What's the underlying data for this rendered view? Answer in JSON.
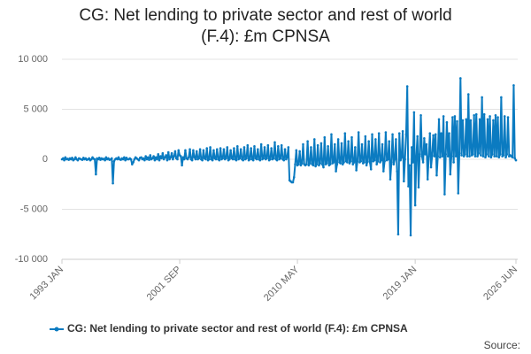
{
  "chart_data": {
    "type": "line",
    "title": "CG: Net lending to private sector and rest of world (F.4): £m CPNSA",
    "source": "Source:",
    "categories": [
      "1993 JAN",
      null,
      null,
      null,
      null,
      null,
      null,
      null,
      null,
      null,
      null,
      null,
      null,
      null,
      null,
      null,
      null,
      null,
      null,
      null,
      null,
      null,
      null,
      null,
      null,
      null,
      null,
      null,
      null,
      null,
      null,
      null,
      null,
      null,
      null,
      null,
      null,
      null,
      null,
      null,
      null,
      null,
      null,
      null,
      null,
      null,
      null,
      null,
      null,
      null,
      null,
      null,
      null,
      null,
      null,
      null,
      null,
      null,
      null,
      null,
      null,
      null,
      null,
      null,
      null,
      null,
      null,
      null,
      null,
      null,
      null,
      null,
      null,
      null,
      null,
      null,
      null,
      null,
      null,
      null,
      null,
      null,
      null,
      null,
      null,
      null,
      null,
      null,
      null,
      null,
      null,
      null,
      null,
      null,
      null,
      null,
      null,
      null,
      null,
      null,
      null,
      null,
      null,
      null,
      "2001 SEP",
      null,
      null,
      null,
      null,
      null,
      null,
      null,
      null,
      null,
      null,
      null,
      null,
      null,
      null,
      null,
      null,
      null,
      null,
      null,
      null,
      null,
      null,
      null,
      null,
      null,
      null,
      null,
      null,
      null,
      null,
      null,
      null,
      null,
      null,
      null,
      null,
      null,
      null,
      null,
      null,
      null,
      null,
      null,
      null,
      null,
      null,
      null,
      null,
      null,
      null,
      null,
      null,
      null,
      null,
      null,
      null,
      null,
      null,
      null,
      null,
      null,
      null,
      null,
      null,
      null,
      null,
      null,
      null,
      null,
      null,
      null,
      null,
      null,
      null,
      null,
      null,
      null,
      null,
      null,
      null,
      null,
      null,
      null,
      null,
      null,
      null,
      null,
      null,
      null,
      null,
      null,
      null,
      null,
      null,
      null,
      null,
      null,
      null,
      null,
      null,
      null,
      null,
      null,
      "2010 MAY",
      null,
      null,
      null,
      null,
      null,
      null,
      null,
      null,
      null,
      null,
      null,
      null,
      null,
      null,
      null,
      null,
      null,
      null,
      null,
      null,
      null,
      null,
      null,
      null,
      null,
      null,
      null,
      null,
      null,
      null,
      null,
      null,
      null,
      null,
      null,
      null,
      null,
      null,
      null,
      null,
      null,
      null,
      null,
      null,
      null,
      null,
      null,
      null,
      null,
      null,
      null,
      null,
      null,
      null,
      null,
      null,
      null,
      null,
      null,
      null,
      null,
      null,
      null,
      null,
      null,
      null,
      null,
      null,
      null,
      null,
      null,
      null,
      null,
      null,
      null,
      null,
      null,
      null,
      null,
      null,
      null,
      null,
      null,
      null,
      null,
      null,
      null,
      null,
      null,
      null,
      null,
      null,
      null,
      null,
      null,
      null,
      null,
      null,
      null,
      null,
      null,
      null,
      null,
      "2019 JAN",
      null,
      null,
      null,
      null,
      null,
      null,
      null,
      null,
      null,
      null,
      null,
      null,
      null,
      null,
      null,
      null,
      null,
      null,
      null,
      null,
      null,
      null,
      null,
      null,
      null,
      null,
      null,
      null,
      null,
      null,
      null,
      null,
      null,
      null,
      null,
      null,
      null,
      null,
      null,
      null,
      null,
      null,
      null,
      null,
      null,
      null,
      null,
      null,
      null,
      null,
      null,
      null,
      null,
      null,
      null,
      null,
      null,
      null,
      null,
      null,
      null,
      null,
      null,
      null,
      null,
      null,
      null,
      null,
      null,
      null,
      null,
      null,
      null,
      null,
      null,
      null,
      null,
      null,
      null,
      null,
      null,
      null,
      null,
      null,
      null,
      null,
      null,
      null,
      "2026 JUN"
    ],
    "series": [
      {
        "name": "CG: Net lending to private sector and rest of world (F.4): £m CPNSA",
        "color": "#0b7bc1",
        "values": [
          0,
          100,
          -100,
          200,
          0,
          50,
          -50,
          100,
          0,
          150,
          -100,
          0,
          200,
          0,
          -100,
          100,
          50,
          0,
          -50,
          150,
          0,
          100,
          -50,
          0,
          100,
          -100,
          0,
          200,
          50,
          0,
          -1500,
          100,
          0,
          150,
          -50,
          100,
          0,
          50,
          -100,
          200,
          0,
          100,
          -50,
          0,
          100,
          -2400,
          -200,
          0,
          100,
          0,
          200,
          0,
          -50,
          100,
          0,
          200,
          -100,
          150,
          0,
          0,
          100,
          0,
          -500,
          -300,
          0,
          200,
          100,
          0,
          -100,
          150,
          200,
          0,
          100,
          -100,
          300,
          0,
          200,
          -50,
          400,
          0,
          100,
          300,
          -100,
          200,
          0,
          500,
          -100,
          300,
          100,
          600,
          0,
          200,
          400,
          -100,
          700,
          0,
          200,
          600,
          0,
          300,
          800,
          100,
          0,
          900,
          400,
          300,
          -600,
          200,
          0,
          900,
          100,
          0,
          200,
          1000,
          0,
          -100,
          900,
          200,
          0,
          800,
          0,
          100,
          1000,
          0,
          -100,
          900,
          100,
          0,
          1100,
          -100,
          0,
          1200,
          0,
          -100,
          900,
          100,
          0,
          1000,
          0,
          -100,
          1100,
          0,
          100,
          1000,
          0,
          100,
          1200,
          -100,
          0,
          900,
          100,
          0,
          1100,
          0,
          -100,
          1300,
          0,
          100,
          1000,
          0,
          -100,
          1200,
          0,
          100,
          1400,
          -100,
          0,
          1100,
          0,
          -100,
          1300,
          100,
          0,
          1000,
          0,
          -100,
          1500,
          0,
          100,
          1200,
          0,
          100,
          1400,
          -100,
          0,
          1100,
          0,
          100,
          1700,
          0,
          -100,
          1300,
          0,
          100,
          1400,
          0,
          -100,
          1000,
          0,
          200,
          1200,
          -2100,
          -2200,
          -2300,
          -2300,
          -1800,
          -500,
          900,
          -600,
          -500,
          800,
          -600,
          -400,
          1500,
          -500,
          -600,
          -500,
          1800,
          -600,
          -400,
          1200,
          -500,
          -600,
          2000,
          -700,
          -500,
          1400,
          -600,
          -400,
          1600,
          -500,
          -800,
          2200,
          -500,
          -400,
          1300,
          -600,
          -500,
          2500,
          -400,
          -300,
          1500,
          -1200,
          -500,
          2000,
          -300,
          -400,
          1600,
          -500,
          -300,
          2600,
          -200,
          -300,
          1800,
          -400,
          -200,
          2200,
          -500,
          -300,
          1200,
          -1100,
          -200,
          2700,
          -300,
          -200,
          1500,
          -400,
          -300,
          2300,
          -600,
          -200,
          1800,
          -300,
          -1000,
          2500,
          -200,
          -100,
          2000,
          -500,
          -200,
          2600,
          -300,
          -100,
          1500,
          -1200,
          -200,
          2700,
          -100,
          0,
          1800,
          -2000,
          -300,
          2500,
          -500,
          0,
          2000,
          -1200,
          -7500,
          2600,
          -100,
          200,
          2800,
          -2200,
          0,
          2500,
          7300,
          -2700,
          -600,
          -7600,
          1200,
          -300,
          4700,
          -4600,
          300,
          2300,
          -2800,
          500,
          4400,
          300,
          -300,
          2100,
          500,
          1500,
          -2000,
          300,
          2600,
          -800,
          400,
          2400,
          300,
          2500,
          -1600,
          300,
          4000,
          200,
          2600,
          300,
          4300,
          -3500,
          500,
          3700,
          300,
          2600,
          -1500,
          300,
          4200,
          -300,
          4300,
          300,
          3800,
          -3400,
          600,
          8100,
          400,
          3900,
          300,
          500,
          4000,
          300,
          6500,
          300,
          3900,
          400,
          500,
          4400,
          300,
          4500,
          300,
          600,
          4000,
          400,
          6200,
          300,
          4500,
          200,
          500,
          4000,
          300,
          4300,
          200,
          500,
          3900,
          300,
          4400,
          300,
          4200,
          200,
          500,
          6200,
          300,
          400,
          4300,
          200,
          500,
          4200,
          300,
          400,
          300,
          200,
          7400,
          100,
          -100
        ]
      }
    ],
    "ylim": [
      -10000,
      10000
    ],
    "yticks": [
      {
        "value": 10000,
        "label": "10 000"
      },
      {
        "value": 5000,
        "label": "5 000"
      },
      0,
      {
        "value": -5000,
        "label": "-5 000"
      },
      {
        "value": -10000,
        "label": "-10 000"
      }
    ],
    "grid": true
  }
}
